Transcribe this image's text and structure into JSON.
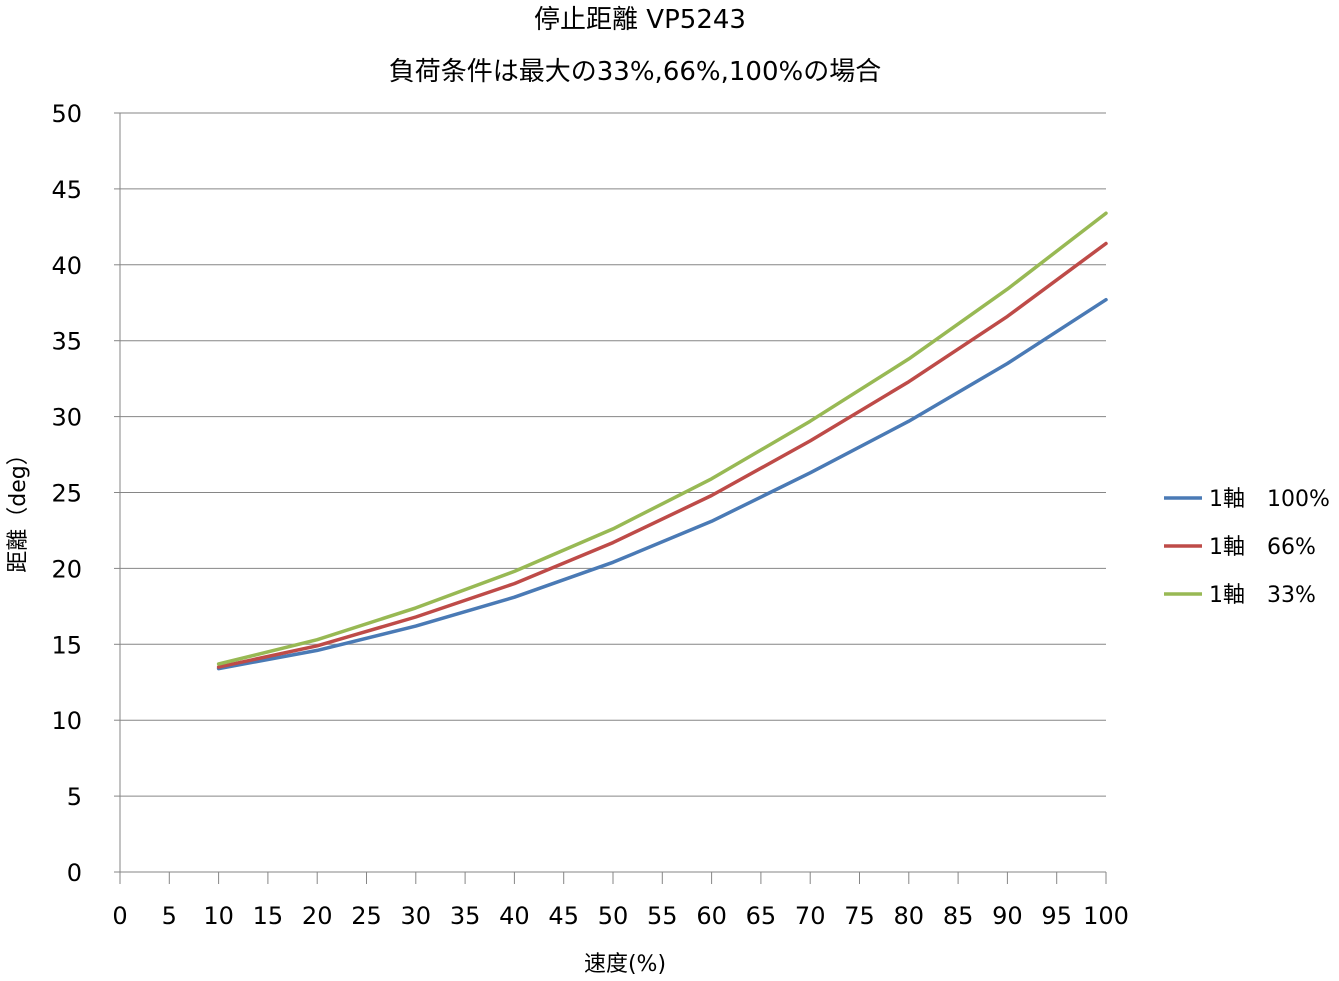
{
  "chart_data": {
    "type": "line",
    "title_lines": [
      "停止距離 VP5243",
      "負荷条件は最大の33%,66%,100%の場合"
    ],
    "xlabel": "速度(%)",
    "ylabel": "距離（deg）",
    "xlim": [
      0,
      100
    ],
    "ylim": [
      0,
      50
    ],
    "x_ticks": [
      "0",
      "5",
      "10",
      "15",
      "20",
      "25",
      "30",
      "35",
      "40",
      "45",
      "50",
      "55",
      "60",
      "65",
      "70",
      "75",
      "80",
      "85",
      "90",
      "95",
      "100"
    ],
    "y_ticks": [
      "0",
      "5",
      "10",
      "15",
      "20",
      "25",
      "30",
      "35",
      "40",
      "45",
      "50"
    ],
    "grid": "horizontal",
    "legend_position": "right",
    "x": [
      10,
      20,
      30,
      40,
      50,
      60,
      70,
      80,
      90,
      100
    ],
    "series": [
      {
        "name": "1軸　100%",
        "color": "#4a7ab5",
        "values": [
          13.4,
          14.6,
          16.2,
          18.1,
          20.4,
          23.1,
          26.3,
          29.7,
          33.5,
          37.7
        ]
      },
      {
        "name": "1軸　66%",
        "color": "#be4b48",
        "values": [
          13.5,
          14.9,
          16.8,
          19.0,
          21.7,
          24.8,
          28.4,
          32.3,
          36.6,
          41.4
        ]
      },
      {
        "name": "1軸　33%",
        "color": "#98b954",
        "values": [
          13.7,
          15.3,
          17.4,
          19.8,
          22.6,
          25.9,
          29.7,
          33.8,
          38.4,
          43.4
        ]
      }
    ]
  }
}
